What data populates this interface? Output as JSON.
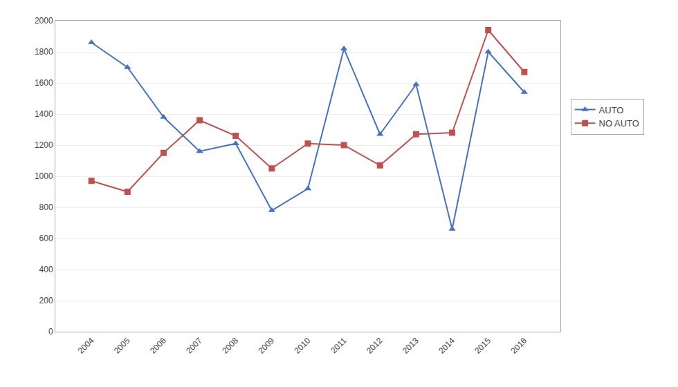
{
  "chart_data": {
    "type": "line",
    "x": [
      2004,
      2005,
      2006,
      2007,
      2008,
      2009,
      2010,
      2011,
      2012,
      2013,
      2014,
      2015,
      2016
    ],
    "series": [
      {
        "name": "AUTO",
        "color": "#4472C4",
        "marker": "triangle",
        "values": [
          1860,
          1700,
          1380,
          1160,
          1210,
          780,
          920,
          1820,
          1270,
          1590,
          660,
          1800,
          1540
        ]
      },
      {
        "name": "NO AUTO",
        "color": "#C0504D",
        "marker": "square",
        "values": [
          970,
          900,
          1150,
          1360,
          1260,
          1050,
          1210,
          1200,
          1070,
          1270,
          1280,
          1940,
          1670
        ]
      }
    ],
    "xlim": [
      2003,
      2017
    ],
    "xticks": [
      2004,
      2005,
      2006,
      2007,
      2008,
      2009,
      2010,
      2011,
      2012,
      2013,
      2014,
      2015,
      2016
    ],
    "ylim": [
      0,
      2000
    ],
    "yticks": [
      0,
      200,
      400,
      600,
      800,
      1000,
      1200,
      1400,
      1600,
      1800,
      2000
    ],
    "grid": "y",
    "legend": "right"
  }
}
